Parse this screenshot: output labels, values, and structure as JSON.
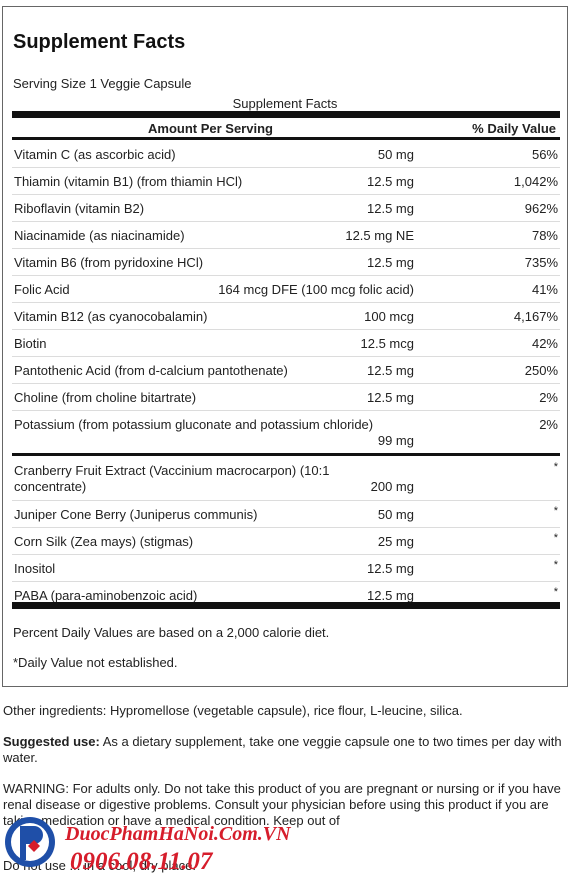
{
  "panel": {
    "title": "Supplement Facts",
    "serving_size": "Serving Size 1 Veggie Capsule",
    "sub_title": "Supplement Facts",
    "header_amount": "Amount Per Serving",
    "header_dv": "% Daily Value",
    "vitamins": [
      {
        "name": "Vitamin C (as ascorbic acid)",
        "amount": "50 mg",
        "dv": "56%"
      },
      {
        "name": "Thiamin (vitamin B1) (from thiamin HCl)",
        "amount": "12.5 mg",
        "dv": "1,042%"
      },
      {
        "name": "Riboflavin (vitamin B2)",
        "amount": "12.5 mg",
        "dv": "962%"
      },
      {
        "name": "Niacinamide (as niacinamide)",
        "amount": "12.5 mg NE",
        "dv": "78%"
      },
      {
        "name": "Vitamin B6 (from pyridoxine HCl)",
        "amount": "12.5 mg",
        "dv": "735%"
      },
      {
        "name": "Folic Acid",
        "amount": "164 mcg DFE (100 mcg folic acid)",
        "dv": "41%"
      },
      {
        "name": "Vitamin B12 (as cyanocobalamin)",
        "amount": "100 mcg",
        "dv": "4,167%"
      },
      {
        "name": "Biotin",
        "amount": "12.5 mcg",
        "dv": "42%"
      },
      {
        "name": "Pantothenic Acid (from d-calcium pantothenate)",
        "amount": "12.5 mg",
        "dv": "250%"
      },
      {
        "name": "Choline (from choline bitartrate)",
        "amount": "12.5 mg",
        "dv": "2%"
      },
      {
        "name": "Potassium (from potassium gluconate and potassium chloride)",
        "amount": "99 mg",
        "dv": "2%"
      }
    ],
    "others": [
      {
        "name": "Cranberry Fruit Extract (Vaccinium macrocarpon) (10:1 concentrate)",
        "amount": "200 mg",
        "dv": "*"
      },
      {
        "name": "Juniper Cone Berry (Juniperus communis)",
        "amount": "50 mg",
        "dv": "*"
      },
      {
        "name": "Corn Silk (Zea mays) (stigmas)",
        "amount": "25 mg",
        "dv": "*"
      },
      {
        "name": "Inositol",
        "amount": "12.5 mg",
        "dv": "*"
      },
      {
        "name": "PABA (para-aminobenzoic acid)",
        "amount": "12.5 mg",
        "dv": "*"
      }
    ],
    "footnote_1": "Percent Daily Values are based on a 2,000 calorie diet.",
    "footnote_2": "*Daily Value not established."
  },
  "info": {
    "other_ingredients": "Other ingredients: Hypromellose (vegetable capsule), rice flour, L-leucine, silica.",
    "suggested_label": "Suggested use:",
    "suggested_text": " As a dietary supplement, take one veggie capsule one to two times per day with water.",
    "warning_label": "WARNING",
    "warning_text": ": For adults only. Do not take this product of you are pregnant or nursing or if you have renal disease or digestive problems. Consult your physician before using this product if you are taking medication or have a medical condition. Keep out of",
    "last_line": "Do not use ... in a cool, dry place."
  },
  "watermark": {
    "site": "DuocPhamHaNoi.Com.VN",
    "phone": "0906.08.11.07",
    "colors": {
      "red": "#d61d2b",
      "blue": "#1f4fa8"
    }
  }
}
